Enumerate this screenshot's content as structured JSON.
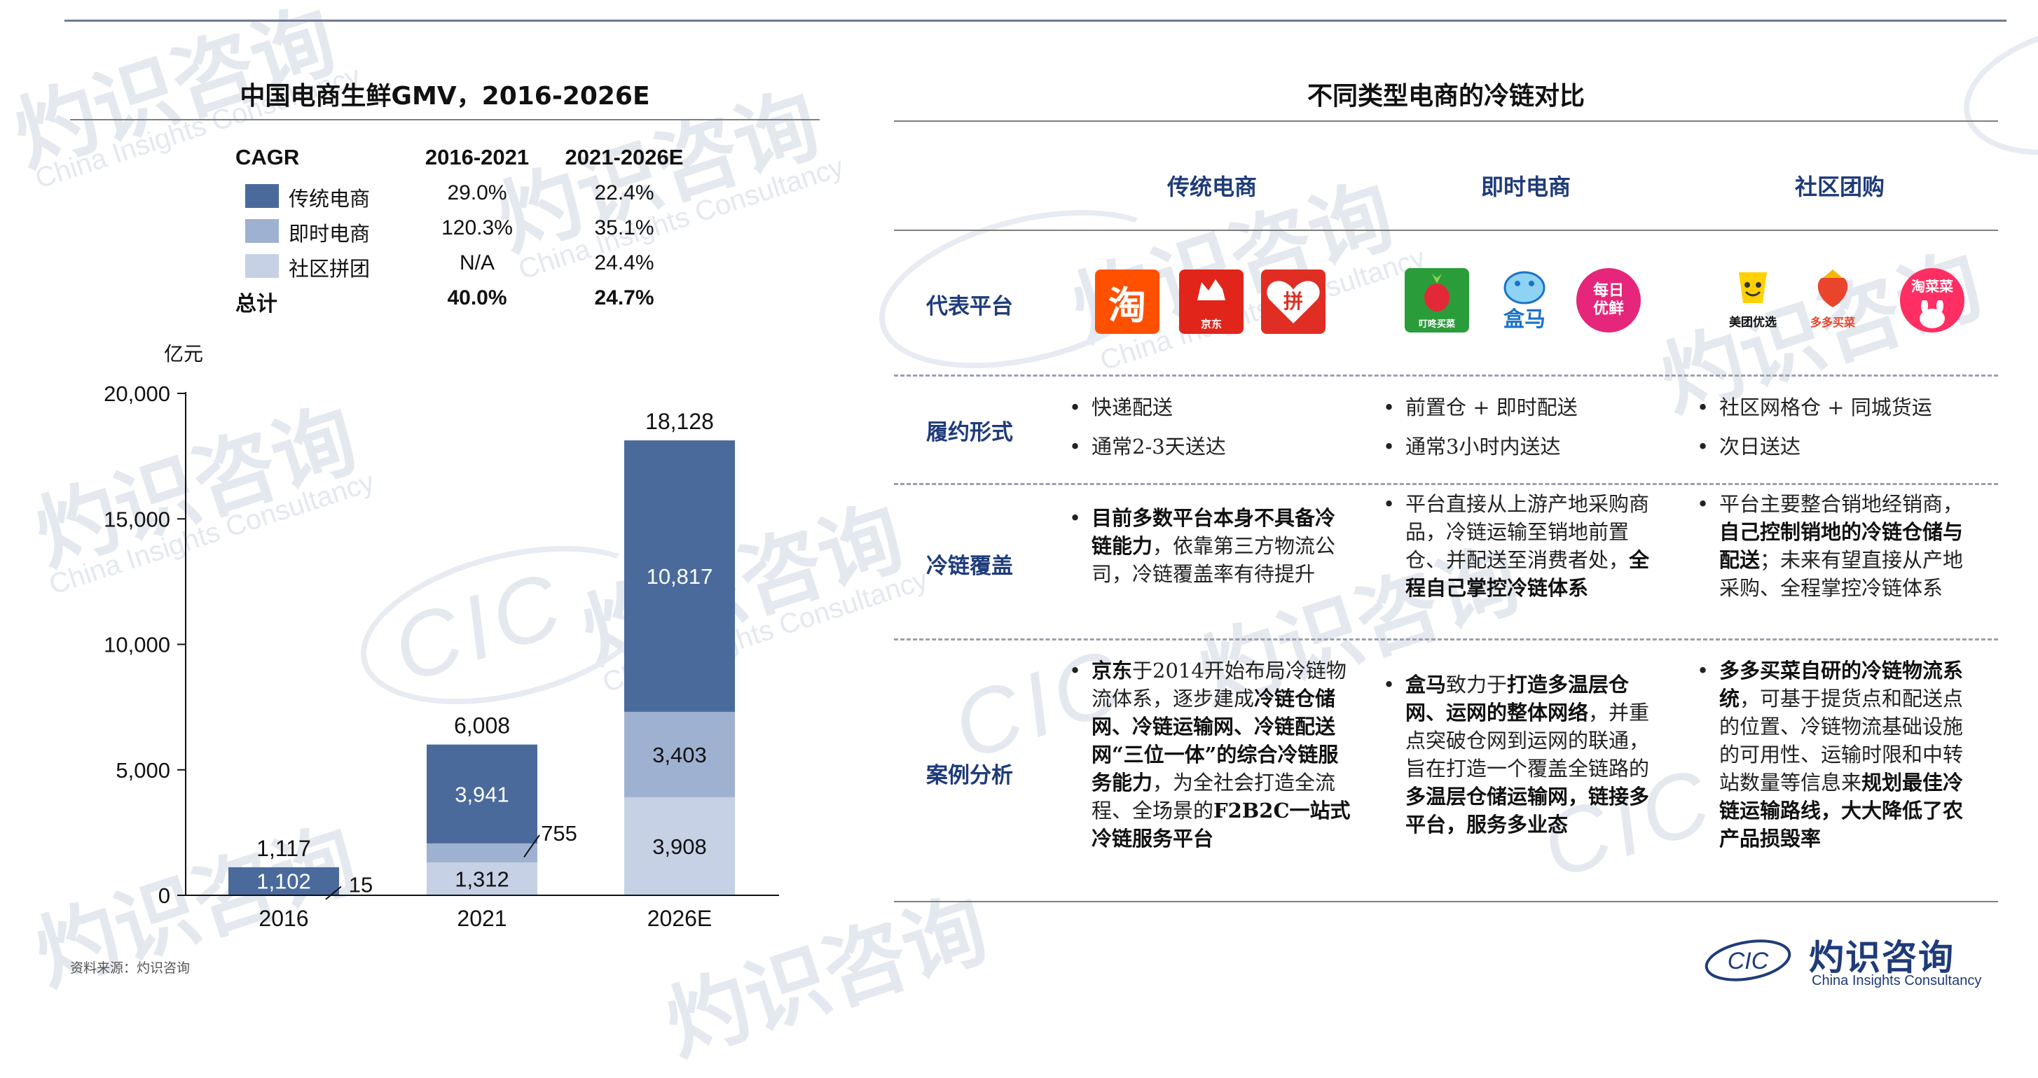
{
  "left": {
    "title": "中国电商生鲜GMV，2016-2026E",
    "unit": "亿元",
    "cagr_table": {
      "header": [
        "CAGR",
        "2016-2021",
        "2021-2026E"
      ],
      "rows": [
        {
          "name": "传统电商",
          "v1": "29.0%",
          "v2": "22.4%",
          "color": "#4a6a9c"
        },
        {
          "name": "即时电商",
          "v1": "120.3%",
          "v2": "35.1%",
          "color": "#9fb1d1"
        },
        {
          "name": "社区拼团",
          "v1": "N/A",
          "v2": "24.4%",
          "color": "#c6d1e6"
        }
      ],
      "total": {
        "name": "总计",
        "v1": "40.0%",
        "v2": "24.7%"
      }
    }
  },
  "chart_data": {
    "type": "bar",
    "stacked": true,
    "title": "中国电商生鲜GMV，2016-2026E",
    "ylabel": "亿元",
    "categories": [
      "2016",
      "2021",
      "2026E"
    ],
    "series": [
      {
        "name": "社区拼团",
        "values": [
          0,
          1312,
          3908
        ],
        "labels": [
          "",
          "1,312",
          "3,908"
        ],
        "color": "#c6d1e6"
      },
      {
        "name": "即时电商",
        "values": [
          15,
          755,
          3403
        ],
        "labels": [
          "15",
          "755",
          "3,403"
        ],
        "color": "#9fb1d1"
      },
      {
        "name": "传统电商",
        "values": [
          1102,
          3941,
          10817
        ],
        "labels": [
          "1,102",
          "3,941",
          "10,817"
        ],
        "color": "#4a6a9c"
      }
    ],
    "totals": [
      1117,
      6008,
      18128
    ],
    "total_labels": [
      "1,117",
      "6,008",
      "18,128"
    ],
    "ylim": [
      0,
      20000
    ],
    "yticks": [
      0,
      5000,
      10000,
      15000,
      20000
    ],
    "ytick_labels": [
      "0",
      "5,000",
      "10,000",
      "15,000",
      "20,000"
    ],
    "grid": false,
    "legend": "top"
  },
  "right": {
    "title": "不同类型电商的冷链对比",
    "columns": [
      "传统电商",
      "即时电商",
      "社区团购"
    ],
    "row_labels": [
      "代表平台",
      "履约形式",
      "冷链覆盖",
      "案例分析"
    ],
    "logos": {
      "traditional": [
        {
          "text": "淘",
          "color": "#ff5000"
        },
        {
          "text": "京东",
          "color": "#e1251b"
        },
        {
          "text": "拼",
          "color": "#e02e24"
        }
      ],
      "instant": [
        {
          "text": "叮咚买菜",
          "color": "#2a9d3a"
        },
        {
          "text": "盒马",
          "color": "#1a73c8"
        },
        {
          "text": "每日优鲜",
          "color": "#e5267a"
        }
      ],
      "community": [
        {
          "text": "美团优选",
          "color": "#ffd100"
        },
        {
          "text": "多多买菜",
          "color": "#e8452c"
        },
        {
          "text": "淘菜菜",
          "color": "#ff2e63"
        }
      ]
    },
    "fulfillment": {
      "traditional": [
        "快递配送",
        "通常2-3天送达"
      ],
      "instant": [
        "前置仓 + 即时配送",
        "通常3小时内送达"
      ],
      "community": [
        "社区网格仓 + 同城货运",
        "次日送达"
      ]
    },
    "coverage": {
      "traditional": [
        {
          "b": "目前多数平台本身不具备冷链能力"
        },
        {
          "t": "，依靠第三方物流公司，冷链覆盖率有待提升"
        }
      ],
      "instant": [
        {
          "t": "平台直接从上游产地采购商品，冷链运输至销地前置仓、并配送至消费者处，"
        },
        {
          "b": "全程自己掌控冷链体系"
        }
      ],
      "community": [
        {
          "t": "平台主要整合销地经销商，"
        },
        {
          "b": "自己控制销地的冷链仓储与配送"
        },
        {
          "t": "；未来有望直接从产地采购、全程掌控冷链体系"
        }
      ]
    },
    "cases": {
      "traditional": [
        {
          "b": "京东"
        },
        {
          "t": "于2014开始布局冷链物流体系，逐步建成"
        },
        {
          "b": "冷链仓储网、冷链运输网、冷链配送网“三位一体”的综合冷链服务能力"
        },
        {
          "t": "，为全社会打造全流程、全场景的"
        },
        {
          "b": "F2B2C一站式冷链服务平台"
        }
      ],
      "instant": [
        {
          "b": "盒马"
        },
        {
          "t": "致力于"
        },
        {
          "b": "打造多温层仓网、运网的整体网络"
        },
        {
          "t": "，并重点突破仓网到运网的联通，旨在打造一个覆盖全链路的"
        },
        {
          "b": "多温层仓储运输网，链接多平台，服务多业态"
        }
      ],
      "community": [
        {
          "b": "多多买菜自研的冷链物流系统"
        },
        {
          "t": "，可基于提货点和配送点的位置、冷链物流基础设施的可用性、运输时限和中转站数量等信息来"
        },
        {
          "b": "规划最佳冷链运输路线，大大降低了农产品损毁率"
        }
      ]
    }
  },
  "footer": {
    "source": "资料来源：灼识咨询",
    "brand_cn": "灼识咨询",
    "brand_en": "China Insights Consultancy",
    "brand_mark": "CIC"
  }
}
